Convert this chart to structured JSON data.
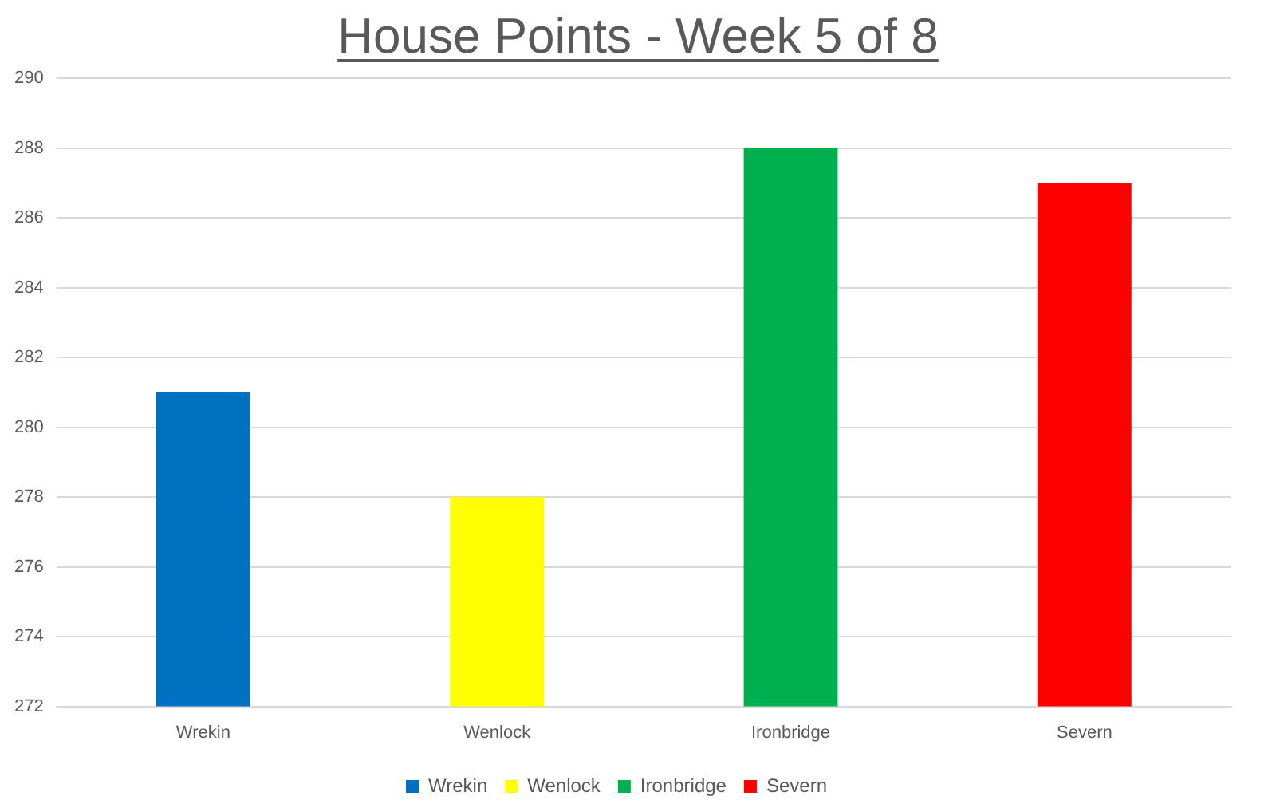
{
  "chart_data": {
    "type": "bar",
    "title": "House Points - Week 5 of 8",
    "categories": [
      "Wrekin",
      "Wenlock",
      "Ironbridge",
      "Severn"
    ],
    "series": [
      {
        "name": "Wrekin",
        "color": "#0070c0",
        "values": [
          281,
          null,
          null,
          null
        ]
      },
      {
        "name": "Wenlock",
        "color": "#ffff00",
        "values": [
          null,
          278,
          null,
          null
        ]
      },
      {
        "name": "Ironbridge",
        "color": "#00b050",
        "values": [
          null,
          null,
          288,
          null
        ]
      },
      {
        "name": "Severn",
        "color": "#ff0000",
        "values": [
          null,
          null,
          null,
          287
        ]
      }
    ],
    "ylim": [
      272,
      290
    ],
    "yticks": [
      272,
      274,
      276,
      278,
      280,
      282,
      284,
      286,
      288,
      290
    ],
    "grid": "y",
    "legend": "bottom"
  }
}
